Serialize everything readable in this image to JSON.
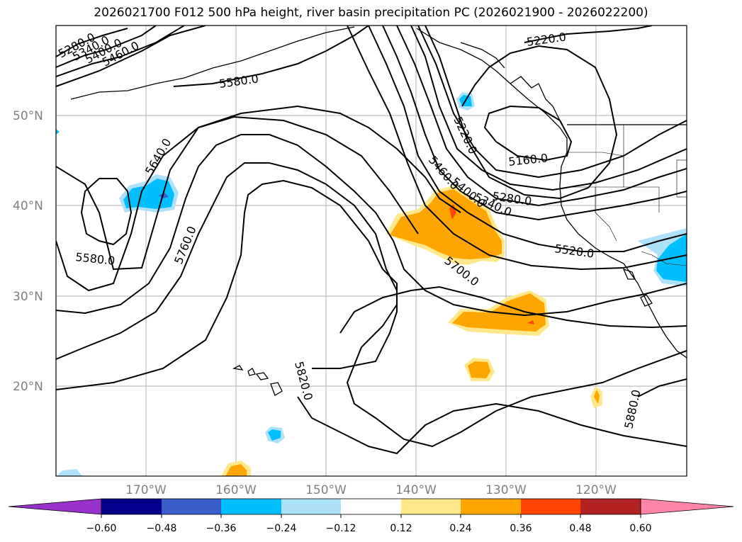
{
  "title": "2026021700 F012 500 hPa height, river basin precipitation PC (2026021900 - 2026022200)",
  "axes": {
    "lat_labels": [
      "50°N",
      "40°N",
      "30°N",
      "20°N"
    ],
    "lon_labels": [
      "170°W",
      "160°W",
      "150°W",
      "140°W",
      "130°W",
      "120°W"
    ]
  },
  "contour_labels": [
    "5280.0",
    "5340.0",
    "5400.0",
    "5460.0",
    "5580.0",
    "5220.0",
    "5640.0",
    "5220.0",
    "5160.0",
    "5460.0",
    "5400.0",
    "5340.0",
    "5280.0",
    "5520.0",
    "5580.0",
    "5760.0",
    "5700.0",
    "5820.0",
    "5880.0"
  ],
  "colorbar": {
    "colors": [
      "#9932CC",
      "#00008B",
      "#3A5FCD",
      "#00BFFF",
      "#ADE1FA",
      "#FFFFFF",
      "#FFE88C",
      "#FFA500",
      "#FF4500",
      "#B22222",
      "#FF85A8"
    ],
    "ticks": [
      "−0.60",
      "−0.48",
      "−0.36",
      "−0.24",
      "−0.12",
      "0.12",
      "0.24",
      "0.36",
      "0.48",
      "0.60"
    ]
  }
}
